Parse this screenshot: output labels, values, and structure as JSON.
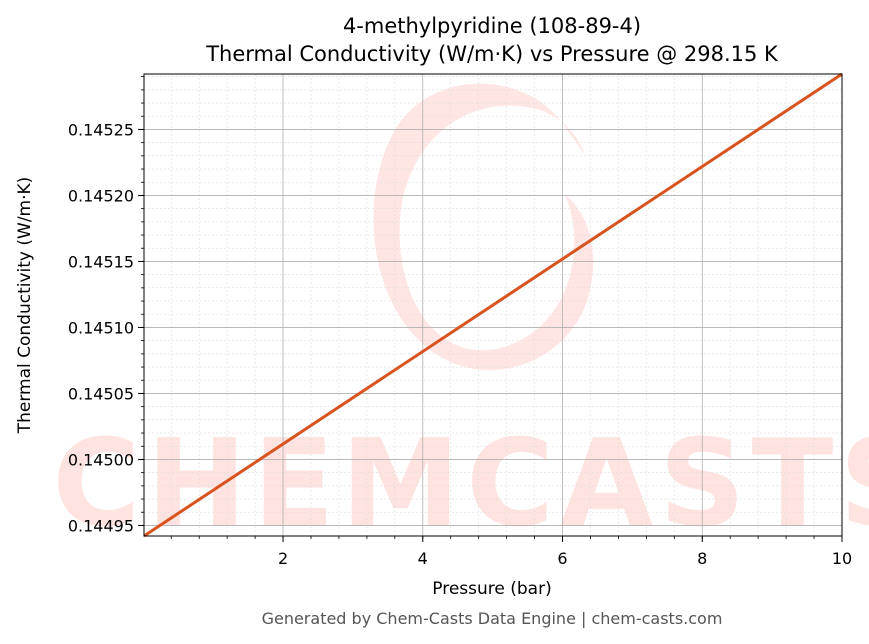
{
  "title_line1": "4-methylpyridine (108-89-4)",
  "title_line2": "Thermal Conductivity (W/m·K) vs Pressure @ 298.15 K",
  "footer": "Generated by Chem-Casts Data Engine | chem-casts.com",
  "watermark": "CHEMCASTS",
  "colors": {
    "line": "#d9531e",
    "watermark": "#ffe3e1",
    "grid_major": "#b0b0b0",
    "grid_minor": "#dddddd"
  },
  "chart_data": {
    "type": "line",
    "xlabel": "Pressure (bar)",
    "ylabel": "Thermal Conductivity (W/m·K)",
    "xlim": [
      0.01,
      10
    ],
    "ylim": [
      0.144942,
      0.145292
    ],
    "x_ticks": [
      2,
      4,
      6,
      8,
      10
    ],
    "x_tick_labels": [
      "2",
      "4",
      "6",
      "8",
      "10"
    ],
    "y_ticks": [
      0.14495,
      0.145,
      0.14505,
      0.1451,
      0.14515,
      0.1452,
      0.14525
    ],
    "y_tick_labels": [
      "0.14495",
      "0.14500",
      "0.14505",
      "0.14510",
      "0.14515",
      "0.14520",
      "0.14525"
    ],
    "grid": true,
    "series": [
      {
        "x": [
          0.01,
          10
        ],
        "y": [
          0.144942,
          0.145292
        ]
      }
    ]
  }
}
